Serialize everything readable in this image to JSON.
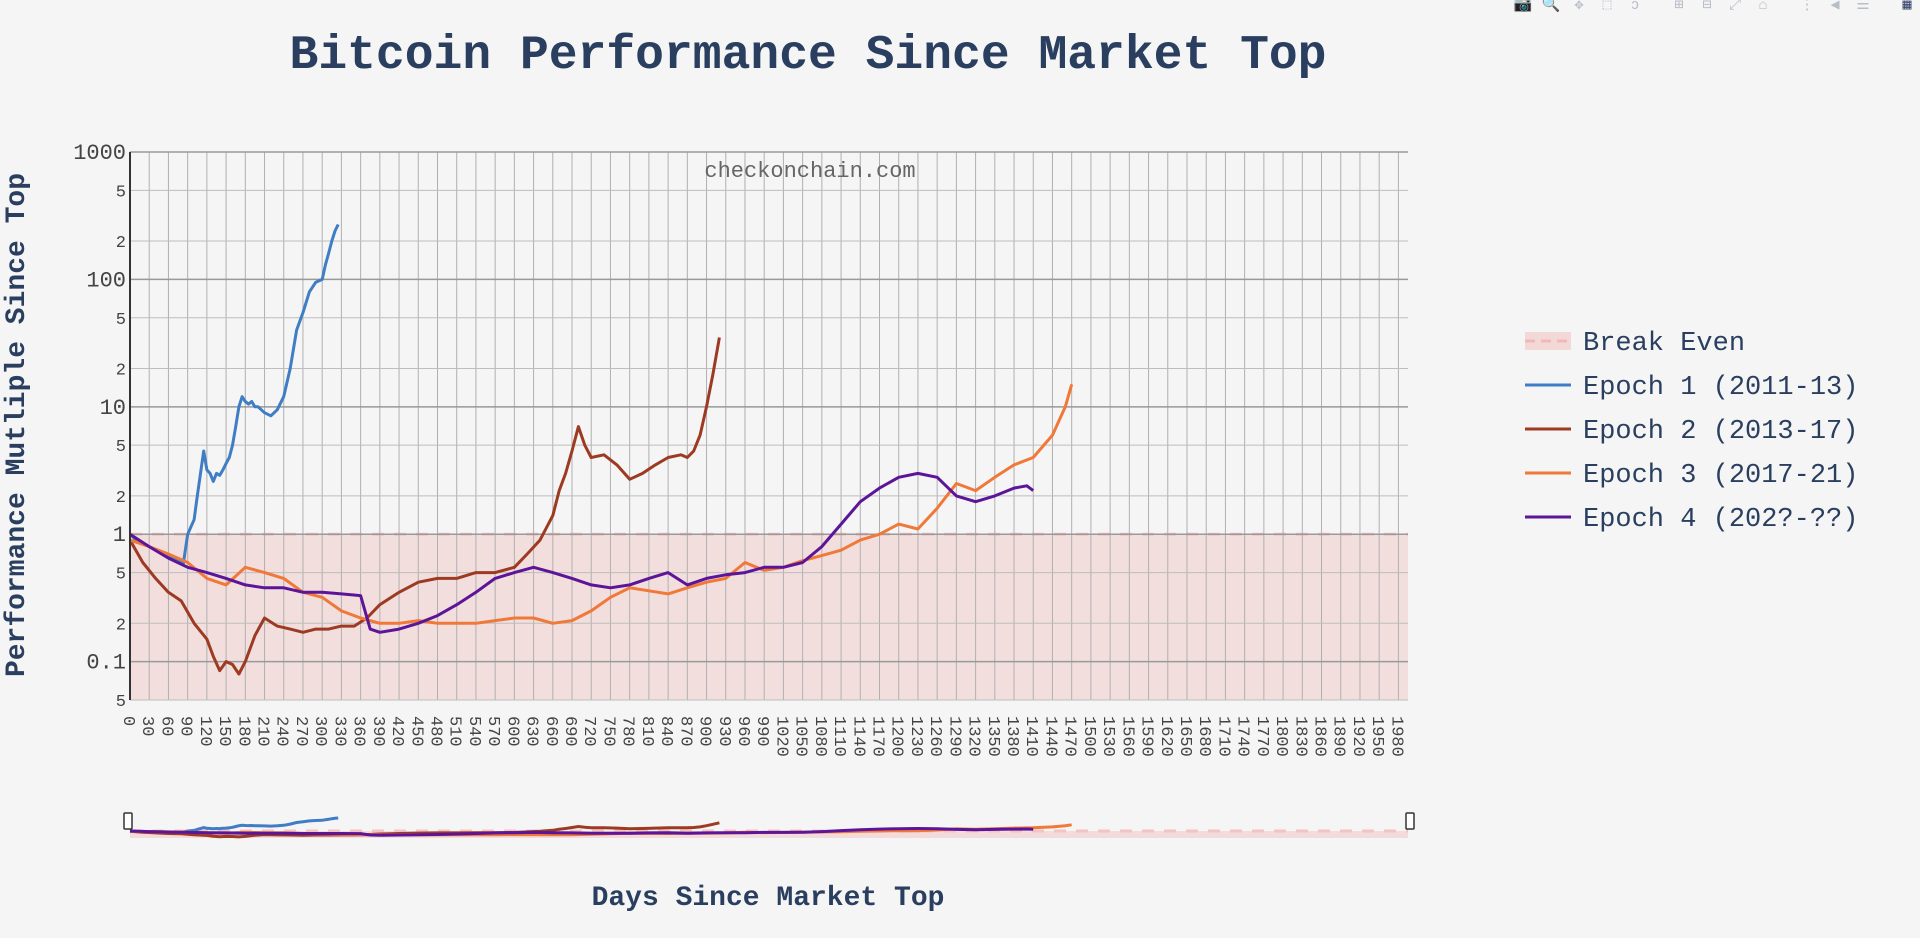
{
  "toolbar": {
    "buttons": [
      {
        "name": "camera-icon",
        "glyph": "📷"
      },
      {
        "name": "zoom-icon",
        "glyph": "🔍"
      },
      {
        "name": "pan-icon",
        "glyph": "✥"
      },
      {
        "name": "box-select-icon",
        "glyph": "⬚"
      },
      {
        "name": "lasso-select-icon",
        "glyph": "ↄ"
      },
      {
        "name": "zoom-in-icon",
        "glyph": "⊞"
      },
      {
        "name": "zoom-out-icon",
        "glyph": "⊟"
      },
      {
        "name": "autoscale-icon",
        "glyph": "⤢"
      },
      {
        "name": "reset-axes-icon",
        "glyph": "⌂"
      },
      {
        "name": "spike-lines-icon",
        "glyph": "⋮"
      },
      {
        "name": "hover-closest-icon",
        "glyph": "◀"
      },
      {
        "name": "hover-compare-icon",
        "glyph": "☰"
      },
      {
        "name": "plotly-logo-icon",
        "glyph": "▦"
      }
    ]
  },
  "chart_data": {
    "type": "line",
    "title": "Bitcoin Performance Since Market Top",
    "xlabel": "Days Since Market Top",
    "ylabel": "Performance Mutliple Since Top",
    "watermark": "checkonchain.com",
    "x_range": [
      0,
      1995
    ],
    "x_tick_step": 30,
    "y_scale": "log",
    "y_range": [
      0.05,
      1000
    ],
    "y_major_ticks": [
      "0.1",
      "1",
      "10",
      "100",
      "1000"
    ],
    "y_minor_tick_labels": [
      "2",
      "5"
    ],
    "grid": true,
    "legend_position": "right",
    "rangeslider": true,
    "break_even": {
      "name": "Break Even",
      "y_from": 0.05,
      "y_to": 1,
      "color": "#f2c4c4"
    },
    "series": [
      {
        "name": "Epoch 1 (2011-13)",
        "color": "#3f7dc4",
        "x": [
          0,
          10,
          20,
          30,
          40,
          50,
          60,
          70,
          80,
          83,
          90,
          100,
          105,
          110,
          115,
          120,
          125,
          130,
          135,
          140,
          145,
          150,
          155,
          160,
          165,
          170,
          175,
          180,
          185,
          190,
          195,
          200,
          210,
          220,
          230,
          240,
          250,
          260,
          270,
          280,
          290,
          300,
          305,
          310,
          315,
          320,
          325
        ],
        "y": [
          1,
          0.9,
          0.85,
          0.8,
          0.75,
          0.7,
          0.66,
          0.63,
          0.6,
          0.58,
          1.0,
          1.3,
          2.0,
          3.0,
          4.5,
          3.2,
          3.0,
          2.6,
          3.0,
          2.9,
          3.2,
          3.6,
          4.0,
          5.0,
          7.0,
          10.0,
          12.0,
          11.0,
          10.5,
          11.0,
          10.0,
          10.0,
          9.0,
          8.5,
          9.5,
          12.0,
          20.0,
          40.0,
          55.0,
          80.0,
          95.0,
          100.0,
          130.0,
          160.0,
          200.0,
          240.0,
          270.0
        ]
      },
      {
        "name": "Epoch 2 (2013-17)",
        "color": "#9c3a22",
        "x": [
          0,
          20,
          40,
          60,
          80,
          100,
          120,
          130,
          140,
          150,
          160,
          170,
          180,
          195,
          210,
          230,
          250,
          270,
          290,
          310,
          330,
          350,
          370,
          390,
          420,
          450,
          480,
          510,
          540,
          570,
          600,
          620,
          640,
          660,
          670,
          680,
          690,
          700,
          710,
          720,
          740,
          760,
          780,
          800,
          820,
          840,
          860,
          870,
          880,
          890,
          900,
          910,
          920
        ],
        "y": [
          0.9,
          0.6,
          0.45,
          0.35,
          0.3,
          0.2,
          0.15,
          0.11,
          0.085,
          0.1,
          0.095,
          0.08,
          0.1,
          0.16,
          0.22,
          0.19,
          0.18,
          0.17,
          0.18,
          0.18,
          0.19,
          0.19,
          0.22,
          0.28,
          0.35,
          0.42,
          0.45,
          0.45,
          0.5,
          0.5,
          0.55,
          0.7,
          0.9,
          1.4,
          2.2,
          3.0,
          4.5,
          7.0,
          5.0,
          4.0,
          4.2,
          3.5,
          2.7,
          3.0,
          3.5,
          4.0,
          4.2,
          4.0,
          4.5,
          6.0,
          10.0,
          18.0,
          35.0
        ]
      },
      {
        "name": "Epoch 3 (2017-21)",
        "color": "#f07838",
        "x": [
          0,
          30,
          60,
          90,
          120,
          150,
          180,
          210,
          240,
          270,
          300,
          330,
          360,
          390,
          420,
          450,
          480,
          510,
          540,
          570,
          600,
          630,
          660,
          690,
          720,
          750,
          780,
          810,
          840,
          870,
          900,
          930,
          960,
          990,
          1020,
          1050,
          1080,
          1110,
          1140,
          1170,
          1200,
          1230,
          1260,
          1290,
          1320,
          1350,
          1380,
          1410,
          1440,
          1460,
          1470
        ],
        "y": [
          0.9,
          0.8,
          0.7,
          0.6,
          0.45,
          0.4,
          0.55,
          0.5,
          0.45,
          0.35,
          0.32,
          0.25,
          0.22,
          0.2,
          0.2,
          0.21,
          0.2,
          0.2,
          0.2,
          0.21,
          0.22,
          0.22,
          0.2,
          0.21,
          0.25,
          0.32,
          0.38,
          0.36,
          0.34,
          0.38,
          0.42,
          0.45,
          0.6,
          0.52,
          0.55,
          0.62,
          0.68,
          0.75,
          0.9,
          1.0,
          1.2,
          1.1,
          1.6,
          2.5,
          2.2,
          2.8,
          3.5,
          4.0,
          6.0,
          10.0,
          15.0
        ]
      },
      {
        "name": "Epoch 4 (202?-??)",
        "color": "#5c1598",
        "x": [
          0,
          30,
          60,
          90,
          120,
          150,
          180,
          210,
          240,
          270,
          300,
          330,
          360,
          375,
          390,
          420,
          450,
          480,
          510,
          540,
          570,
          600,
          630,
          660,
          690,
          720,
          750,
          780,
          810,
          840,
          870,
          900,
          930,
          960,
          990,
          1020,
          1050,
          1080,
          1110,
          1140,
          1170,
          1200,
          1230,
          1260,
          1290,
          1320,
          1350,
          1380,
          1400,
          1410
        ],
        "y": [
          1,
          0.8,
          0.65,
          0.55,
          0.5,
          0.45,
          0.4,
          0.38,
          0.38,
          0.35,
          0.35,
          0.34,
          0.33,
          0.18,
          0.17,
          0.18,
          0.2,
          0.23,
          0.28,
          0.35,
          0.45,
          0.5,
          0.55,
          0.5,
          0.45,
          0.4,
          0.38,
          0.4,
          0.45,
          0.5,
          0.4,
          0.45,
          0.48,
          0.5,
          0.55,
          0.55,
          0.6,
          0.8,
          1.2,
          1.8,
          2.3,
          2.8,
          3.0,
          2.8,
          2.0,
          1.8,
          2.0,
          2.3,
          2.4,
          2.2
        ]
      }
    ]
  }
}
